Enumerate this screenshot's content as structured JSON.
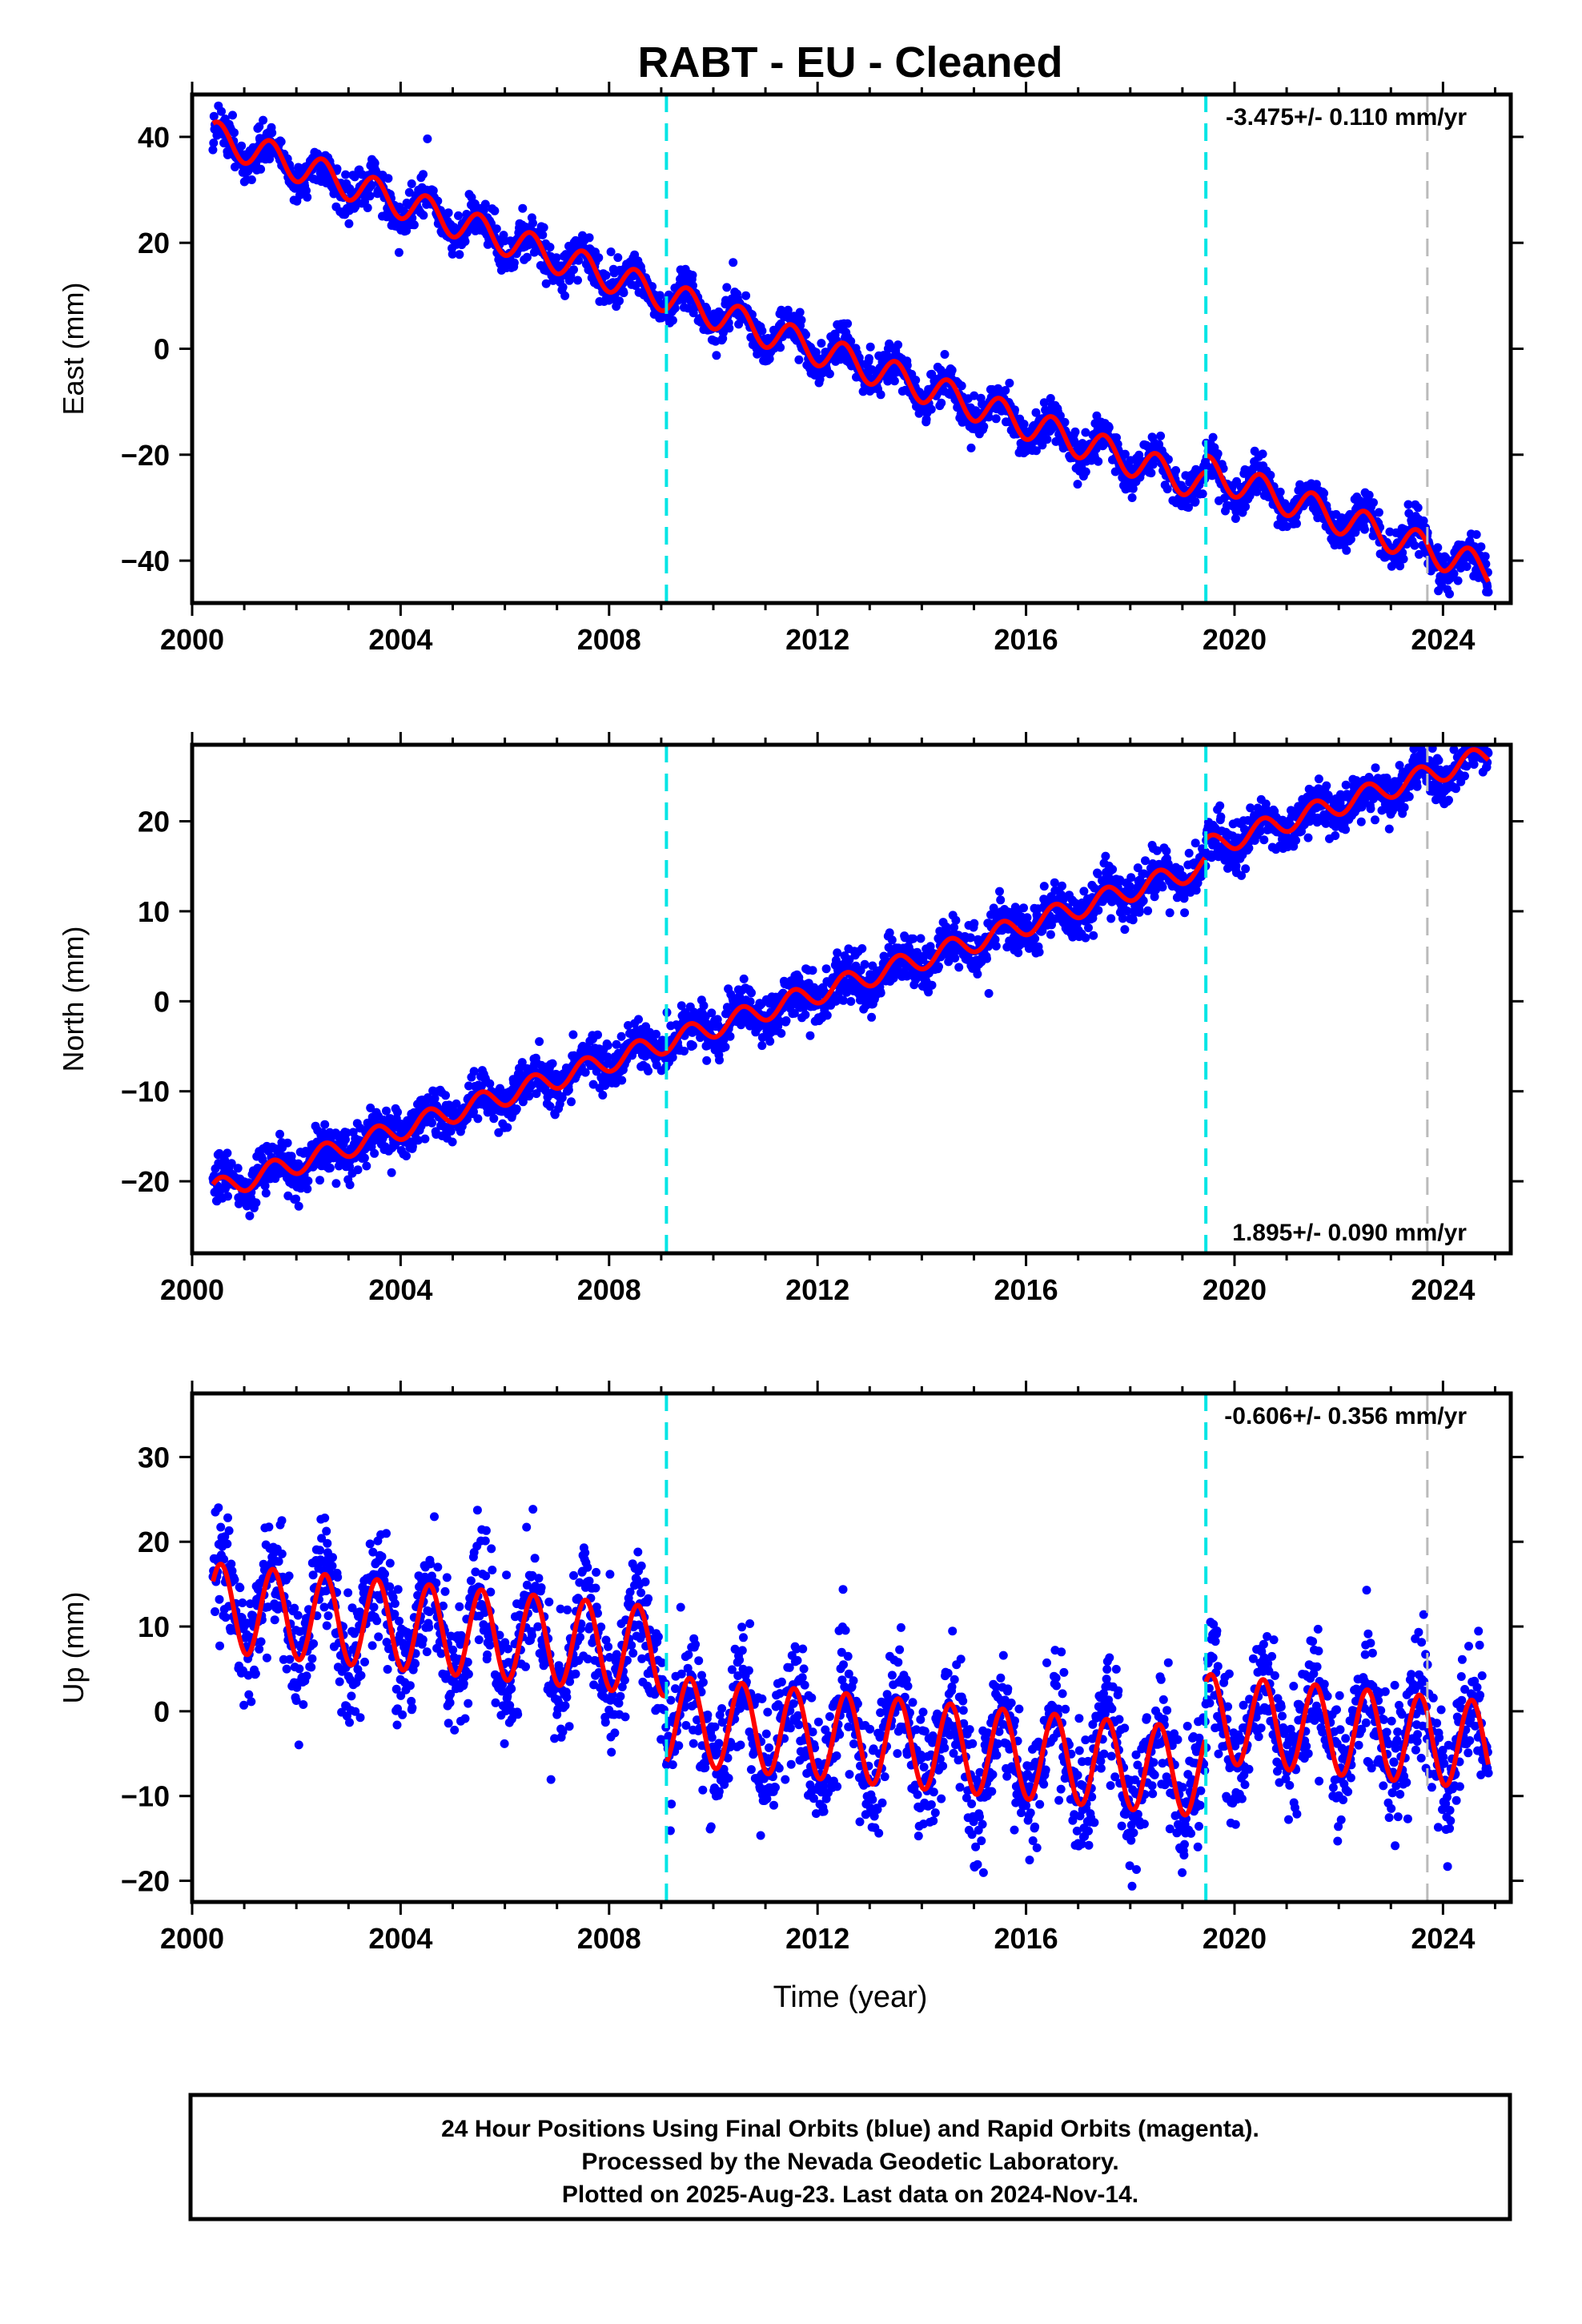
{
  "title": "RABT  - EU - Cleaned",
  "xlabel": "Time (year)",
  "footer": [
    "24 Hour Positions Using Final Orbits (blue) and Rapid Orbits (magenta).",
    "Processed by the Nevada Geodetic Laboratory.",
    "Plotted on 2025-Aug-23. Last data on 2024-Nov-14."
  ],
  "colors": {
    "data": "#0000ff",
    "model": "#ff0000",
    "equipment_change": "#00e5e5",
    "other_event": "#bbbbbb"
  },
  "chart_data": [
    {
      "type": "scatter",
      "component": "East",
      "ylabel": "East (mm)",
      "rate_label": "-3.475+/- 0.110 mm/yr",
      "rate_position": "top-right",
      "xlim": [
        2000.0,
        2025.3
      ],
      "ylim": [
        -48,
        48
      ],
      "xticks": [
        2000,
        2004,
        2008,
        2012,
        2016,
        2020,
        2024
      ],
      "yticks": [
        -40,
        -20,
        0,
        20,
        40
      ],
      "data_range": [
        2000.4,
        2024.87
      ],
      "event_lines": [
        {
          "x": 2009.1,
          "kind": "equipment_change"
        },
        {
          "x": 2019.45,
          "kind": "equipment_change"
        },
        {
          "x": 2023.7,
          "kind": "other_event"
        }
      ],
      "model": {
        "trend_mm_per_yr": -3.475,
        "offset_at_2000": 41.5,
        "annual_amplitude_mm": 3.0,
        "annual_peak": 0.5,
        "scatter_mm": 1.8,
        "steps": [
          {
            "x": 2019.45,
            "dy": 3.0
          }
        ]
      },
      "grid": false
    },
    {
      "type": "scatter",
      "component": "North",
      "ylabel": "North (mm)",
      "rate_label": "1.895+/- 0.090 mm/yr",
      "rate_position": "bottom-right",
      "xlim": [
        2000.0,
        2025.3
      ],
      "ylim": [
        -28,
        28.5
      ],
      "xticks": [
        2000,
        2004,
        2008,
        2012,
        2016,
        2020,
        2024
      ],
      "yticks": [
        -20,
        -10,
        0,
        10,
        20
      ],
      "data_range": [
        2000.4,
        2024.87
      ],
      "event_lines": [
        {
          "x": 2009.1,
          "kind": "equipment_change"
        },
        {
          "x": 2019.45,
          "kind": "equipment_change"
        },
        {
          "x": 2023.7,
          "kind": "other_event"
        }
      ],
      "model": {
        "trend_mm_per_yr": 1.895,
        "offset_at_2000": -21.8,
        "annual_amplitude_mm": 1.2,
        "annual_peak": 0.55,
        "scatter_mm": 1.3,
        "steps": [
          {
            "x": 2019.45,
            "dy": 2.0
          }
        ]
      },
      "grid": false
    },
    {
      "type": "scatter",
      "component": "Up",
      "ylabel": "Up (mm)",
      "rate_label": "-0.606+/- 0.356 mm/yr",
      "rate_position": "top-right",
      "xlim": [
        2000.0,
        2025.3
      ],
      "ylim": [
        -22.5,
        37.5
      ],
      "xticks": [
        2000,
        2004,
        2008,
        2012,
        2016,
        2020,
        2024
      ],
      "yticks": [
        -20,
        -10,
        0,
        10,
        20,
        30
      ],
      "data_range": [
        2000.4,
        2024.87
      ],
      "event_lines": [
        {
          "x": 2009.1,
          "kind": "equipment_change"
        },
        {
          "x": 2019.45,
          "kind": "equipment_change"
        },
        {
          "x": 2023.7,
          "kind": "other_event"
        }
      ],
      "model": {
        "trend_mm_per_yr": -0.606,
        "offset_at_2000": 12.5,
        "annual_amplitude_mm": 5.2,
        "annual_peak": 0.55,
        "scatter_mm": 3.6,
        "steps": [
          {
            "x": 2009.1,
            "dy": -8.0
          },
          {
            "x": 2019.45,
            "dy": 6.5
          }
        ]
      },
      "grid": false
    }
  ]
}
